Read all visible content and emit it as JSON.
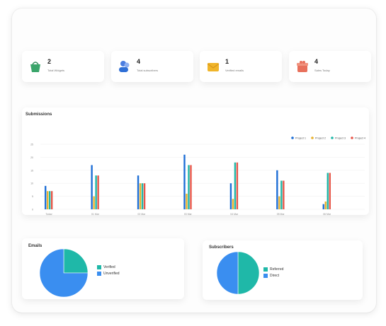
{
  "stats": [
    {
      "value": "2",
      "label": "Total Widgets",
      "icon": "shopping-bag-icon",
      "color": "#3aa56a"
    },
    {
      "value": "4",
      "label": "Total subscribers",
      "icon": "users-icon",
      "color": "#2f6fd6"
    },
    {
      "value": "1",
      "label": "Verified emails",
      "icon": "mail-icon",
      "color": "#f0b52a"
    },
    {
      "value": "4",
      "label": "Sales Today",
      "icon": "gift-icon",
      "color": "#e8705c"
    }
  ],
  "submissions": {
    "title": "Submissions",
    "chart_data": {
      "type": "bar",
      "categories": [
        "Today",
        "01 Mar",
        "02 Mar",
        "03 Mar",
        "04 Mar",
        "05 Mar",
        "06 Mar"
      ],
      "yticks": [
        "0",
        "5",
        "10",
        "15",
        "20",
        "25"
      ],
      "ylim": [
        0,
        25
      ],
      "series": [
        {
          "name": "Project 1",
          "color": "#1f6fd6",
          "values": [
            9,
            17,
            13,
            21,
            10,
            15,
            2
          ]
        },
        {
          "name": "Project 2",
          "color": "#e8b12e",
          "values": [
            7,
            5,
            10,
            6,
            4,
            5,
            3
          ]
        },
        {
          "name": "Project 3",
          "color": "#1fb8a8",
          "values": [
            7,
            13,
            10,
            17,
            18,
            11,
            14
          ]
        },
        {
          "name": "Project 4",
          "color": "#e8574a",
          "values": [
            7,
            13,
            10,
            17,
            18,
            11,
            14
          ]
        }
      ]
    }
  },
  "emails": {
    "title": "Emails",
    "chart_data": {
      "type": "pie",
      "labels": [
        "Verified",
        "Unverified"
      ],
      "values": [
        1,
        3
      ],
      "colors": [
        "#1fb8a8",
        "#3a8ef0"
      ]
    }
  },
  "subscribers": {
    "title": "Subscribers",
    "chart_data": {
      "type": "pie",
      "labels": [
        "Referred",
        "Direct"
      ],
      "values": [
        2,
        2
      ],
      "colors": [
        "#1fb8a8",
        "#3a8ef0"
      ]
    }
  }
}
